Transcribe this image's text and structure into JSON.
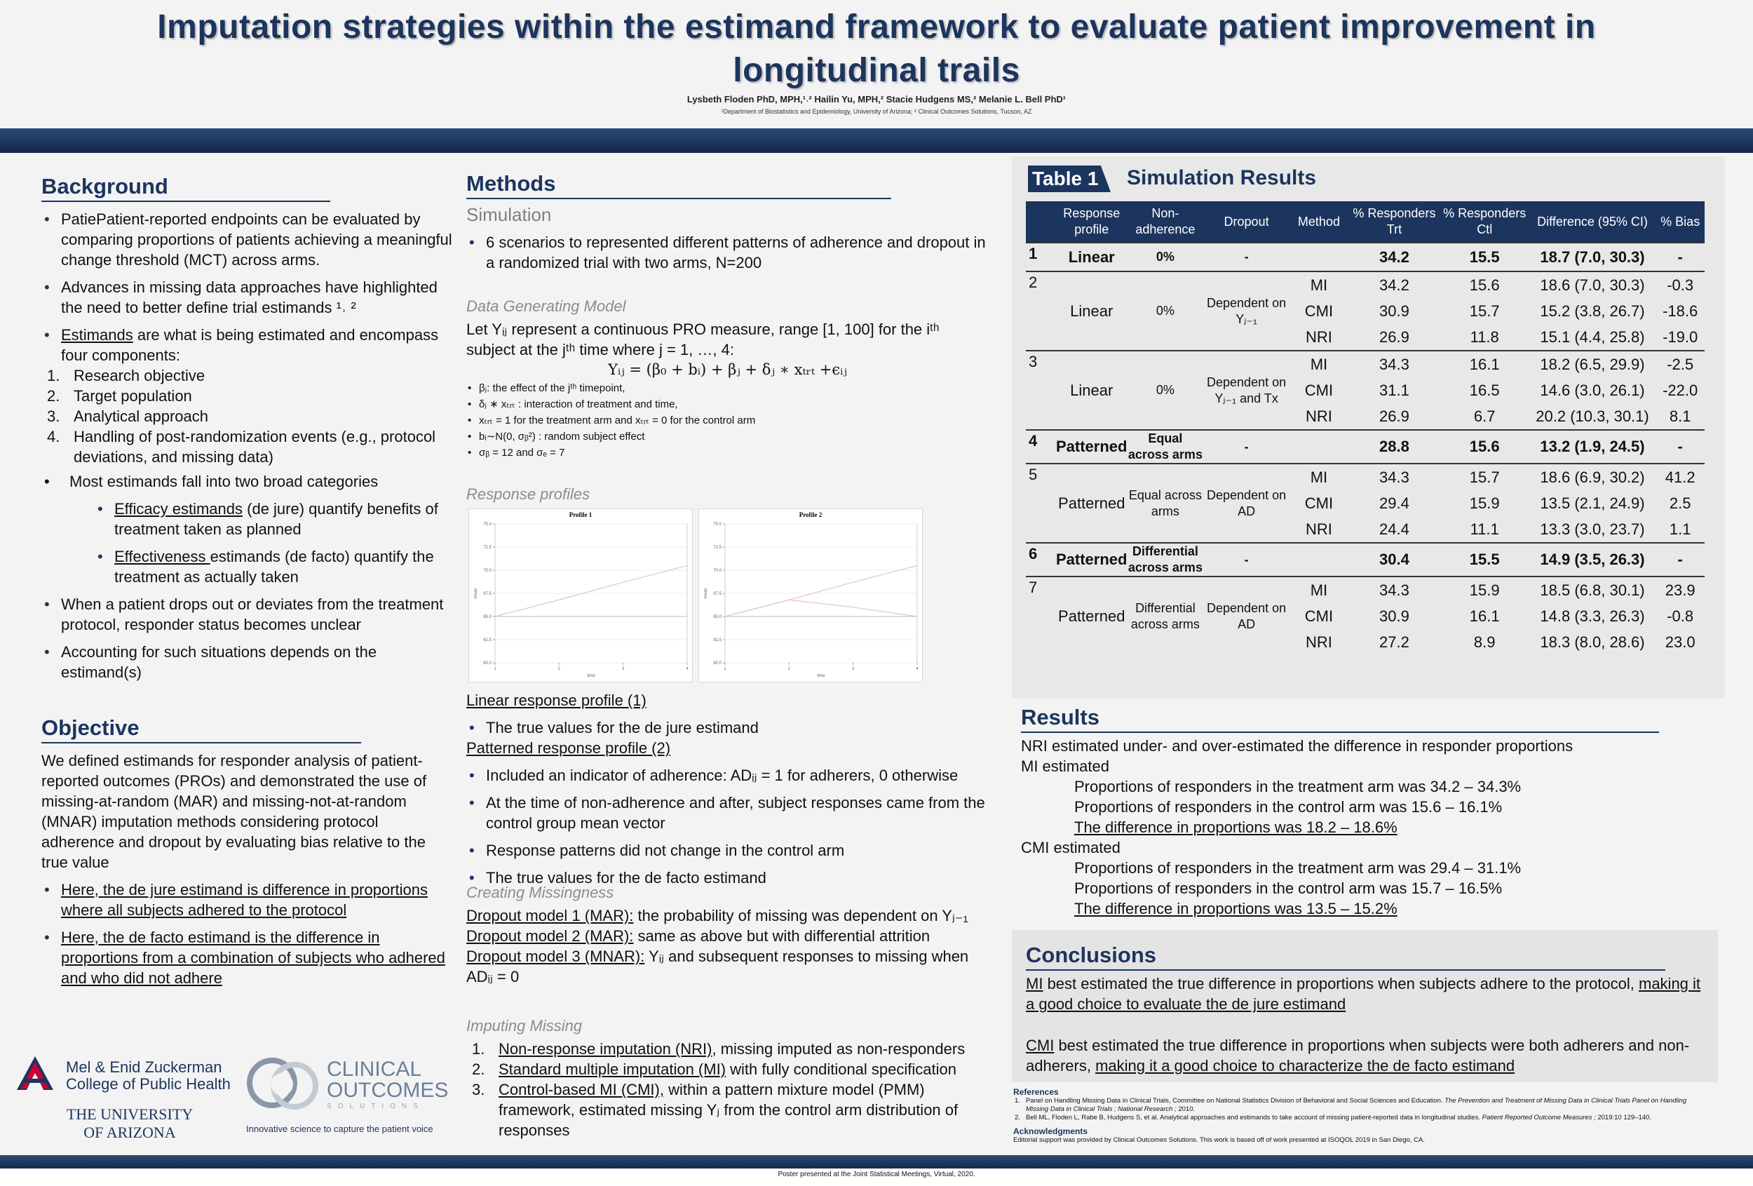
{
  "header": {
    "title": "Imputation strategies within the estimand framework to evaluate patient improvement in longitudinal trails",
    "authors": "Lysbeth Floden PhD, MPH,¹˒² Hailin Yu, MPH,²  Stacie Hudgens MS,² Melanie L. Bell PhD¹",
    "affiliations": "¹Department of Biostatistics and Epidemiology, University of Arizona; ² Clinical Outcomes Solutions, Tucson, AZ"
  },
  "background": {
    "heading": "Background",
    "blocks": [
      {
        "kind": "bullet",
        "parts": [
          "PatiePatient-reported endpoints can be evaluated by comparing proportions of patients achieving a meaningful change threshold (MCT) across arms."
        ]
      },
      {
        "kind": "bullet",
        "parts": [
          "Advances in missing data approaches have highlighted the need to better define trial estimands ¹˒ ²"
        ]
      },
      {
        "kind": "bullet",
        "parts": [
          {
            "u": "Estimands"
          },
          " are what is being estimated and encompass four components:"
        ]
      },
      {
        "kind": "num",
        "marker": "1.",
        "parts": [
          "Research objective"
        ]
      },
      {
        "kind": "num",
        "marker": "2.",
        "parts": [
          "Target population"
        ]
      },
      {
        "kind": "num",
        "marker": "3.",
        "parts": [
          "Analytical approach"
        ]
      },
      {
        "kind": "num",
        "marker": "4.",
        "parts": [
          "Handling of post-randomization events (e.g., protocol deviations, and missing data)"
        ]
      },
      {
        "kind": "bullet2",
        "parts": [
          "Most estimands fall into two broad categories"
        ]
      },
      {
        "kind": "sub-bullet",
        "parts": [
          {
            "u": "Efficacy estimands"
          },
          " (de jure) quantify benefits of treatment taken as planned"
        ]
      },
      {
        "kind": "sub-bullet",
        "parts": [
          {
            "u": "Effectiveness "
          },
          "estimands (de facto) quantify the treatment as actually taken"
        ]
      },
      {
        "kind": "bullet",
        "parts": [
          "When a patient drops out or deviates from the treatment protocol, responder status becomes unclear"
        ]
      },
      {
        "kind": "bullet",
        "parts": [
          "Accounting for such situations depends on the estimand(s)"
        ]
      }
    ]
  },
  "objective": {
    "heading": "Objective",
    "blocks": [
      {
        "kind": "p",
        "parts": [
          "We defined estimands for responder analysis of patient-reported outcomes (PROs) and demonstrated the use of missing-at-random (MAR) and missing-not-at-random (MNAR) imputation methods considering protocol adherence and dropout by evaluating bias relative to the true value"
        ]
      },
      {
        "kind": "bullet",
        "parts": [
          {
            "u": "Here, the de jure estimand is difference in proportions where all subjects adhered to the protocol"
          }
        ]
      },
      {
        "kind": "bullet",
        "parts": [
          {
            "u": "Here, the de facto estimand is the difference in proportions from a combination of subjects who adhered and who did not adhere"
          }
        ]
      }
    ]
  },
  "logos": {
    "college_line1": "Mel & Enid Zuckerman",
    "college_line2": "College of Public Health",
    "university_line1": "THE UNIVERSITY",
    "university_line2": "OF ARIZONA",
    "co_line1": "CLINICAL",
    "co_line2": "OUTCOMES",
    "co_line3": "SOLUTIONS",
    "co_tagline": "Innovative science to capture the patient voice"
  },
  "methods": {
    "heading": "Methods",
    "simulation": [
      {
        "kind": "sub",
        "parts": [
          "Simulation"
        ]
      },
      {
        "kind": "bullet",
        "parts": [
          "6 scenarios to represented different patterns of adherence and dropout in a randomized trial with two arms, N=200"
        ]
      }
    ],
    "model": [
      {
        "kind": "ital",
        "parts": [
          "Data Generating Model"
        ]
      },
      {
        "kind": "p",
        "parts": [
          "Let Yᵢⱼ represent a continuous PRO measure, range [1, 100] for the iᵗʰ subject at the jᵗʰ time where  j = 1, …, 4:"
        ]
      },
      {
        "kind": "eq",
        "parts": [
          "Yᵢⱼ = (β₀ + bᵢ) + βⱼ +  δⱼ ∗ xₜᵣₜ  +ϵᵢⱼ"
        ]
      },
      {
        "kind": "small-bullet",
        "parts": [
          "βⱼ: the effect of the jᵗʰ timepoint,"
        ]
      },
      {
        "kind": "small-bullet",
        "parts": [
          "δⱼ ∗ xₜᵣₜ : interaction of treatment and time,"
        ]
      },
      {
        "kind": "small-bullet",
        "parts": [
          "xₜᵣₜ = 1 for the treatment arm and xₜᵣₜ = 0 for the control arm"
        ]
      },
      {
        "kind": "small-bullet",
        "parts": [
          "bᵢ∼N(0, σᵦ²) : random subject effect"
        ]
      },
      {
        "kind": "small-bullet",
        "parts": [
          "σᵦ = 12 and σₑ = 7"
        ]
      }
    ],
    "profiles_heading": [
      {
        "kind": "ital",
        "parts": [
          "Response profiles"
        ]
      }
    ],
    "profiles": [
      {
        "kind": "p",
        "parts": [
          {
            "u": "Linear response profile (1)"
          }
        ]
      },
      {
        "kind": "bullet",
        "parts": [
          "The true values for the de jure estimand"
        ]
      },
      {
        "kind": "p",
        "parts": [
          {
            "u": "Patterned response profile (2)"
          }
        ]
      },
      {
        "kind": "bullet",
        "parts": [
          "Included an indicator of adherence: ADᵢⱼ = 1 for adherers, 0 otherwise"
        ]
      },
      {
        "kind": "bullet",
        "parts": [
          "At the time of non-adherence and after, subject responses came from the control group mean vector"
        ]
      },
      {
        "kind": "bullet",
        "parts": [
          "Response patterns did not change in the control arm"
        ]
      },
      {
        "kind": "bullet",
        "parts": [
          "The true values for the de facto estimand"
        ]
      }
    ],
    "missingness": [
      {
        "kind": "ital",
        "parts": [
          "Creating Missingness"
        ]
      },
      {
        "kind": "p",
        "parts": [
          {
            "u": "Dropout model 1 (MAR):"
          },
          " the probability of missing was dependent on Yⱼ₋₁"
        ]
      },
      {
        "kind": "p",
        "parts": [
          {
            "u": "Dropout model 2 (MAR):"
          },
          " same as above but with differential attrition"
        ]
      },
      {
        "kind": "p",
        "parts": [
          {
            "u": "Dropout model 3 (MNAR):"
          },
          " Yᵢⱼ and subsequent responses to missing when ADᵢⱼ = 0"
        ]
      }
    ],
    "imputing": [
      {
        "kind": "ital",
        "parts": [
          "Imputing Missing"
        ]
      },
      {
        "kind": "num",
        "marker": "1.",
        "parts": [
          {
            "u": "Non-response imputation (NRI)"
          },
          ", missing imputed as non-responders"
        ]
      },
      {
        "kind": "num",
        "marker": "2.",
        "parts": [
          {
            "u": "Standard multiple imputation (MI)"
          },
          " with fully conditional specification"
        ]
      },
      {
        "kind": "num",
        "marker": "3.",
        "parts": [
          {
            "u": "Control-based MI (CMI),"
          },
          " within a pattern mixture model (PMM) framework, estimated missing Yⱼ from the control arm distribution of responses"
        ]
      }
    ]
  },
  "profile_charts": [
    {
      "title": "Profile 1",
      "xlabel": "time",
      "ylabel": "mean",
      "x": [
        1,
        2,
        3,
        4
      ],
      "xlim": [
        1,
        4
      ],
      "xticks": [
        1,
        2,
        3,
        4
      ],
      "ylim": [
        60,
        75
      ],
      "yticks": [
        {
          "value": 60,
          "label": "60.0"
        },
        62.5,
        {
          "value": 65,
          "label": "65.0"
        },
        67.5,
        {
          "value": 70,
          "label": "70.0"
        },
        72.5,
        {
          "value": 75,
          "label": "75.0"
        }
      ],
      "series": [
        {
          "color": "#c9c3d6",
          "values": [
            65,
            65,
            65,
            65
          ]
        },
        {
          "color": "#e3c6c6",
          "values": [
            65,
            66.8,
            68.7,
            70.5
          ]
        }
      ]
    },
    {
      "title": "Profile 2",
      "xlabel": "time",
      "ylabel": "mean",
      "x": [
        1,
        2,
        3,
        4
      ],
      "xlim": [
        1,
        4
      ],
      "xticks": [
        1,
        2,
        3,
        4
      ],
      "ylim": [
        60,
        75
      ],
      "yticks": [
        {
          "value": 60,
          "label": "60.0"
        },
        62.5,
        {
          "value": 65,
          "label": "65.0"
        },
        67.5,
        {
          "value": 70,
          "label": "70.0"
        },
        72.5,
        {
          "value": 75,
          "label": "75.0"
        }
      ],
      "series": [
        {
          "color": "#c9c3d6",
          "values": [
            65,
            65,
            65,
            65
          ]
        },
        {
          "color": "#e3c6c6",
          "values": [
            65,
            66.8,
            68.7,
            70.5
          ]
        },
        {
          "color": "#e3c6c6",
          "values": [
            65,
            66.8,
            66,
            65
          ]
        }
      ]
    }
  ],
  "table": {
    "label": "Table 1",
    "title": "Simulation Results",
    "columns": [
      "Response profile",
      "Non-adherence",
      "Dropout",
      "Method",
      "% Responders Trt",
      "% Responders Ctl",
      "Difference (95% CI)",
      "% Bias"
    ],
    "scenarios": [
      {
        "num": "1",
        "profile": "Linear",
        "adherence": "0%",
        "dropout": "-",
        "rows": [
          {
            "trt": "34.2",
            "ctl": "15.5",
            "diff": "18.7 (7.0, 30.3)",
            "bias": "-"
          }
        ]
      },
      {
        "num": "2",
        "profile": "Linear",
        "adherence": "0%",
        "dropout": "Dependent on Yⱼ₋₁",
        "rows": [
          {
            "method": "MI",
            "trt": "34.2",
            "ctl": "15.6",
            "diff": "18.6 (7.0, 30.3)",
            "bias": "-0.3"
          },
          {
            "method": "CMI",
            "trt": "30.9",
            "ctl": "15.7",
            "diff": "15.2 (3.8, 26.7)",
            "bias": "-18.6"
          },
          {
            "method": "NRI",
            "trt": "26.9",
            "ctl": "11.8",
            "diff": "15.1 (4.4, 25.8)",
            "bias": "-19.0"
          }
        ]
      },
      {
        "num": "3",
        "profile": "Linear",
        "adherence": "0%",
        "dropout": "Dependent on Yⱼ₋₁ and Tx",
        "rows": [
          {
            "method": "MI",
            "trt": "34.3",
            "ctl": "16.1",
            "diff": "18.2 (6.5, 29.9)",
            "bias": "-2.5"
          },
          {
            "method": "CMI",
            "trt": "31.1",
            "ctl": "16.5",
            "diff": "14.6 (3.0, 26.1)",
            "bias": "-22.0"
          },
          {
            "method": "NRI",
            "trt": "26.9",
            "ctl": "6.7",
            "diff": "20.2 (10.3, 30.1)",
            "bias": "8.1"
          }
        ]
      },
      {
        "num": "4",
        "profile": "Patterned",
        "adherence": "Equal across arms",
        "dropout": "-",
        "rows": [
          {
            "trt": "28.8",
            "ctl": "15.6",
            "diff": "13.2 (1.9, 24.5)",
            "bias": "-"
          }
        ]
      },
      {
        "num": "5",
        "profile": "Patterned",
        "adherence": "Equal across arms",
        "dropout": "Dependent on AD",
        "rows": [
          {
            "method": "MI",
            "trt": "34.3",
            "ctl": "15.7",
            "diff": "18.6 (6.9, 30.2)",
            "bias": "41.2"
          },
          {
            "method": "CMI",
            "trt": "29.4",
            "ctl": "15.9",
            "diff": "13.5 (2.1, 24.9)",
            "bias": "2.5"
          },
          {
            "method": "NRI",
            "trt": "24.4",
            "ctl": "11.1",
            "diff": "13.3 (3.0, 23.7)",
            "bias": "1.1"
          }
        ]
      },
      {
        "num": "6",
        "profile": "Patterned",
        "adherence": "Differential across arms",
        "dropout": "-",
        "rows": [
          {
            "trt": "30.4",
            "ctl": "15.5",
            "diff": "14.9 (3.5, 26.3)",
            "bias": "-"
          }
        ]
      },
      {
        "num": "7",
        "profile": "Patterned",
        "adherence": "Differential across arms",
        "dropout": "Dependent on AD",
        "rows": [
          {
            "method": "MI",
            "trt": "34.3",
            "ctl": "15.9",
            "diff": "18.5 (6.8, 30.1)",
            "bias": "23.9"
          },
          {
            "method": "CMI",
            "trt": "30.9",
            "ctl": "16.1",
            "diff": "14.8 (3.3, 26.3)",
            "bias": "-0.8"
          },
          {
            "method": "NRI",
            "trt": "27.2",
            "ctl": "8.9",
            "diff": "18.3 (8.0, 28.6)",
            "bias": "23.0"
          }
        ]
      }
    ]
  },
  "results": {
    "heading": "Results",
    "blocks": [
      {
        "kind": "p",
        "parts": [
          "NRI estimated under- and over-estimated the difference in responder proportions"
        ]
      },
      {
        "kind": "p",
        "parts": [
          "MI estimated"
        ]
      },
      {
        "kind": "indent",
        "parts": [
          "Proportions of responders in the treatment arm was 34.2 – 34.3%"
        ]
      },
      {
        "kind": "indent",
        "parts": [
          "Proportions of responders in the control arm was 15.6 – 16.1%"
        ]
      },
      {
        "kind": "indent",
        "parts": [
          {
            "u": "The difference in proportions was 18.2 – 18.6%"
          }
        ]
      },
      {
        "kind": "p",
        "parts": [
          "CMI estimated"
        ]
      },
      {
        "kind": "indent",
        "parts": [
          "Proportions of responders in the treatment arm was 29.4 – 31.1%"
        ]
      },
      {
        "kind": "indent",
        "parts": [
          "Proportions of responders in the control arm was 15.7 – 16.5%"
        ]
      },
      {
        "kind": "indent",
        "parts": [
          {
            "u": "The difference in proportions was 13.5 – 15.2%"
          }
        ]
      }
    ]
  },
  "conclusions": {
    "heading": "Conclusions",
    "blocks": [
      {
        "kind": "para",
        "parts": [
          {
            "u": "MI"
          },
          " best estimated the true difference in proportions when subjects adhere to the protocol, ",
          {
            "u": "making it a good choice to evaluate the de jure estimand"
          }
        ]
      },
      {
        "kind": "para",
        "parts": [
          {
            "u": "CMI"
          },
          " best estimated the true difference in proportions when subjects were both adherers and non-adherers, ",
          {
            "u": "making it a good choice to characterize the de facto estimand"
          }
        ]
      }
    ]
  },
  "references": {
    "heading": "References",
    "blocks": [
      {
        "kind": "ref",
        "marker": "1.",
        "parts": [
          "Panel on Handling Missing Data in Clinical Trials, Committee on National Statistics Division of Behavioral and Social Sciences and Education. ",
          {
            "i": "The Prevention and Treatment of Missing Data in Clinical Trials Panel on Handling Missing Data in Clinical Trials ; National Research ;"
          },
          " 2010."
        ]
      },
      {
        "kind": "ref",
        "marker": "2.",
        "parts": [
          "Bell ML, Floden L, Rabe B, Hudgens S, et al. Analytical approaches and estimands to take account of missing patient-reported data in longitudinal studies. ",
          {
            "i": "Patient Reported Outcome Measures ;"
          },
          " 2019:10 129–140."
        ]
      }
    ],
    "ack_heading": "Acknowledgments",
    "ack": "Editorial support was provided by Clinical Outcomes Solutions. This work is based off of work presented at ISOQOL 2019 in San Diego, CA."
  },
  "footer": "Poster presented at the Joint Statistical Meetings, Virtual, 2020."
}
